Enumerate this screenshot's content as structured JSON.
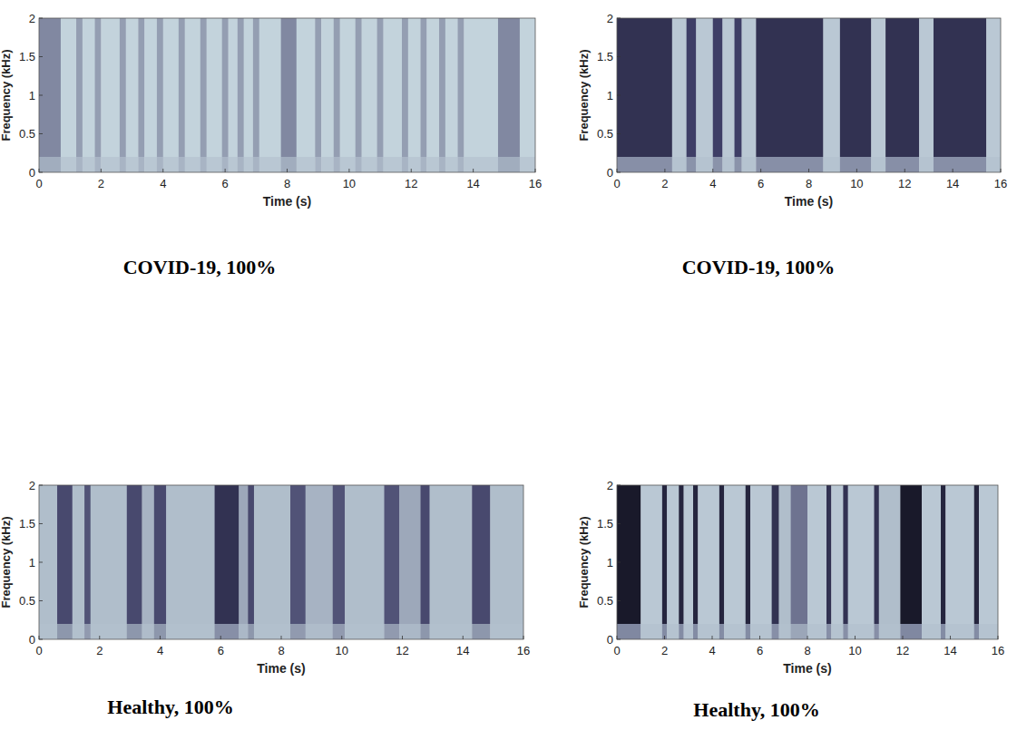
{
  "chart_data": [
    {
      "type": "heatmap",
      "title": "COVID-19, 100%",
      "x_label": "Time (s)",
      "y_label": "Frequency (kHz)",
      "xlim": [
        0,
        16
      ],
      "xticks": [
        0,
        2,
        4,
        6,
        8,
        10,
        12,
        14,
        16
      ],
      "ylim": [
        0,
        2
      ],
      "yticks": [
        0,
        0.5,
        1,
        1.5,
        2
      ],
      "floor_frequency": 0.2,
      "bins": [
        0,
        0.7,
        1.2,
        1.4,
        1.8,
        2.0,
        2.6,
        2.8,
        3.2,
        3.4,
        3.8,
        4.0,
        4.5,
        4.7,
        5.2,
        5.4,
        5.9,
        6.1,
        6.4,
        6.6,
        6.9,
        7.1,
        7.8,
        8.3,
        8.9,
        9.1,
        9.5,
        9.7,
        10.2,
        10.4,
        10.9,
        11.1,
        11.7,
        11.9,
        12.3,
        12.5,
        12.9,
        13.1,
        13.5,
        13.7,
        14.8,
        15.5,
        16
      ],
      "values": [
        0.45,
        0.1,
        0.35,
        0.1,
        0.35,
        0.1,
        0.35,
        0.1,
        0.35,
        0.1,
        0.35,
        0.1,
        0.35,
        0.1,
        0.35,
        0.1,
        0.35,
        0.1,
        0.35,
        0.1,
        0.35,
        0.1,
        0.45,
        0.1,
        0.35,
        0.1,
        0.35,
        0.1,
        0.35,
        0.1,
        0.35,
        0.1,
        0.35,
        0.1,
        0.35,
        0.1,
        0.35,
        0.1,
        0.35,
        0.1,
        0.45,
        0.1
      ]
    },
    {
      "type": "heatmap",
      "title": "COVID-19, 100%",
      "x_label": "Time (s)",
      "y_label": "Frequency (kHz)",
      "xlim": [
        0,
        16
      ],
      "xticks": [
        0,
        2,
        4,
        6,
        8,
        10,
        12,
        14,
        16
      ],
      "ylim": [
        0,
        2
      ],
      "yticks": [
        0,
        0.5,
        1,
        1.5,
        2
      ],
      "floor_frequency": 0.2,
      "bins": [
        0,
        2.3,
        2.9,
        3.3,
        4.0,
        4.4,
        4.9,
        5.2,
        5.8,
        8.6,
        9.3,
        10.6,
        11.2,
        12.6,
        13.2,
        15.4,
        16
      ],
      "values": [
        0.85,
        0.15,
        0.8,
        0.15,
        0.8,
        0.15,
        0.8,
        0.15,
        0.85,
        0.15,
        0.85,
        0.15,
        0.85,
        0.15,
        0.85,
        0.15
      ]
    },
    {
      "type": "heatmap",
      "title": "Healthy, 100%",
      "x_label": "Time (s)",
      "y_label": "Frequency (kHz)",
      "xlim": [
        0,
        16
      ],
      "xticks": [
        0,
        2,
        4,
        6,
        8,
        10,
        12,
        14,
        16
      ],
      "ylim": [
        0,
        2
      ],
      "yticks": [
        0,
        0.5,
        1,
        1.5,
        2
      ],
      "floor_frequency": 0.2,
      "bins": [
        0,
        0.6,
        1.1,
        1.5,
        1.7,
        2.9,
        3.4,
        3.8,
        4.2,
        5.8,
        6.6,
        6.9,
        7.1,
        8.3,
        8.8,
        9.7,
        10.1,
        11.4,
        11.9,
        12.6,
        12.9,
        14.3,
        14.9,
        16
      ],
      "values": [
        0.2,
        0.75,
        0.2,
        0.7,
        0.2,
        0.75,
        0.25,
        0.75,
        0.2,
        0.85,
        0.3,
        0.75,
        0.2,
        0.7,
        0.25,
        0.7,
        0.2,
        0.7,
        0.3,
        0.75,
        0.2,
        0.75,
        0.2
      ]
    },
    {
      "type": "heatmap",
      "title": "Healthy, 100%",
      "x_label": "Time (s)",
      "y_label": "Frequency (kHz)",
      "xlim": [
        0,
        16
      ],
      "xticks": [
        0,
        2,
        4,
        6,
        8,
        10,
        12,
        14,
        16
      ],
      "ylim": [
        0,
        2
      ],
      "yticks": [
        0,
        0.5,
        1,
        1.5,
        2
      ],
      "floor_frequency": 0.2,
      "bins": [
        0,
        1.0,
        1.9,
        2.1,
        2.6,
        2.8,
        3.2,
        3.4,
        4.3,
        4.5,
        5.4,
        5.6,
        6.5,
        6.8,
        7.3,
        8.0,
        8.8,
        9.0,
        9.5,
        9.7,
        10.8,
        11.0,
        11.9,
        12.8,
        13.6,
        13.8,
        15.0,
        15.2,
        16
      ],
      "values": [
        0.95,
        0.15,
        0.9,
        0.15,
        0.9,
        0.15,
        0.9,
        0.15,
        0.9,
        0.15,
        0.9,
        0.15,
        0.85,
        0.2,
        0.55,
        0.15,
        0.85,
        0.15,
        0.85,
        0.15,
        0.85,
        0.2,
        0.95,
        0.15,
        0.9,
        0.15,
        0.9,
        0.15
      ]
    }
  ]
}
